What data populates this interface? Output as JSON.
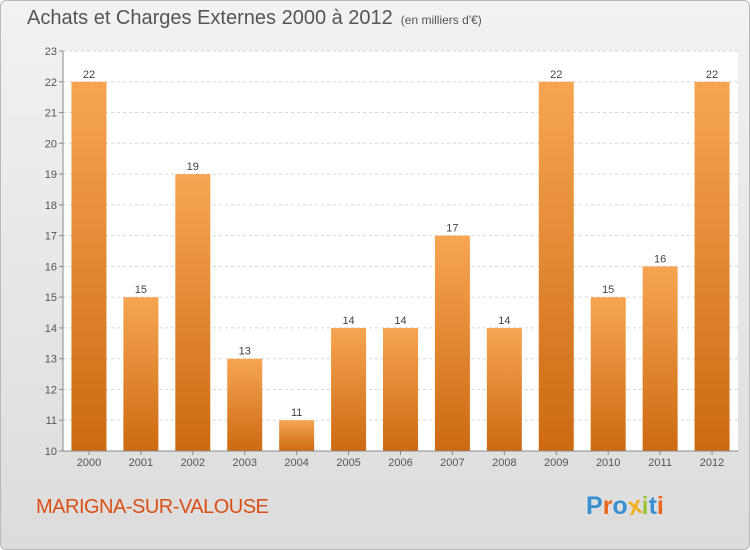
{
  "header": {
    "title": "Achats et Charges Externes 2000 à 2012",
    "unit_note": "(en milliers d'€)"
  },
  "footer": {
    "commune": "MARIGNA-SUR-VALOUSE",
    "logo": {
      "letters": [
        "P",
        "r",
        "o",
        "x",
        "i",
        "t",
        "i"
      ],
      "colors": [
        "#3a8fd0",
        "#e9681e",
        "#3a8fd0",
        "#f2b01e",
        "#9bc63b",
        "#3a8fd0",
        "#e9681e"
      ]
    }
  },
  "colors": {
    "bar_top": "#f7a552",
    "bar_bottom": "#cc6a12",
    "grid": "#d6d6d6",
    "axis": "#888888"
  },
  "chart_data": {
    "type": "bar",
    "categories": [
      "2000",
      "2001",
      "2002",
      "2003",
      "2004",
      "2005",
      "2006",
      "2007",
      "2008",
      "2009",
      "2010",
      "2011",
      "2012"
    ],
    "values": [
      22,
      15,
      19,
      13,
      11,
      14,
      14,
      17,
      14,
      22,
      15,
      16,
      22
    ],
    "ylim": [
      10,
      23
    ],
    "yticks": [
      10,
      11,
      12,
      13,
      14,
      15,
      16,
      17,
      18,
      19,
      20,
      21,
      22,
      23
    ],
    "grid": true,
    "data_labels": true
  }
}
